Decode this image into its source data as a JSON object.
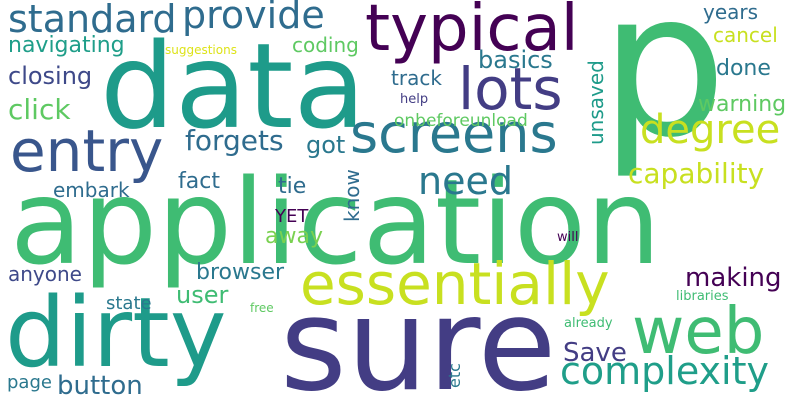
{
  "words": [
    {
      "text": "p",
      "color": "#3fbc73"
    },
    {
      "text": "application",
      "color": "#3fbc73"
    },
    {
      "text": "data",
      "color": "#1e9b8a"
    },
    {
      "text": "sure",
      "color": "#433d84"
    },
    {
      "text": "typical",
      "color": "#440154"
    },
    {
      "text": "dirty",
      "color": "#1e9b8a"
    },
    {
      "text": "essentially",
      "color": "#c8e020"
    },
    {
      "text": "entry",
      "color": "#39568c"
    },
    {
      "text": "screens",
      "color": "#2a788e"
    },
    {
      "text": "standard",
      "color": "#2f6c8e"
    },
    {
      "text": "provide",
      "color": "#2f6c8e"
    },
    {
      "text": "lots",
      "color": "#433d84"
    },
    {
      "text": "web",
      "color": "#3fbc73"
    },
    {
      "text": "degree",
      "color": "#c8e020"
    },
    {
      "text": "complexity",
      "color": "#1f9e89"
    },
    {
      "text": "need",
      "color": "#2a788e"
    },
    {
      "text": "capability",
      "color": "#c8e020"
    },
    {
      "text": "forgets",
      "color": "#2f6c8e"
    },
    {
      "text": "making",
      "color": "#440154"
    },
    {
      "text": "click",
      "color": "#5ec962"
    },
    {
      "text": "closing",
      "color": "#3e4989"
    },
    {
      "text": "navigating",
      "color": "#1f9e89"
    },
    {
      "text": "basics",
      "color": "#2a788e"
    },
    {
      "text": "years",
      "color": "#2f6c8e"
    },
    {
      "text": "cancel",
      "color": "#c8e020"
    },
    {
      "text": "done",
      "color": "#2a788e"
    },
    {
      "text": "warning",
      "color": "#5ec962"
    },
    {
      "text": "coding",
      "color": "#5ec962"
    },
    {
      "text": "track",
      "color": "#2f6c8e"
    },
    {
      "text": "button",
      "color": "#2f6c8e"
    },
    {
      "text": "Save",
      "color": "#433d84"
    },
    {
      "text": "user",
      "color": "#3fbc73"
    },
    {
      "text": "browser",
      "color": "#2a788e"
    },
    {
      "text": "got",
      "color": "#2a788e"
    },
    {
      "text": "fact",
      "color": "#2f6c8e"
    },
    {
      "text": "tie",
      "color": "#2f6c8e"
    },
    {
      "text": "away",
      "color": "#7ad151"
    },
    {
      "text": "embark",
      "color": "#2f6c8e"
    },
    {
      "text": "anyone",
      "color": "#3e4989"
    },
    {
      "text": "state",
      "color": "#2a788e"
    },
    {
      "text": "page",
      "color": "#2a788e"
    },
    {
      "text": "onbeforeunload",
      "color": "#5ec962"
    },
    {
      "text": "unsaved",
      "color": "#1e9b8a"
    },
    {
      "text": "know",
      "color": "#2f6c8e"
    },
    {
      "text": "YET",
      "color": "#440154"
    },
    {
      "text": "suggestions",
      "color": "#dde318"
    },
    {
      "text": "help",
      "color": "#433d84"
    },
    {
      "text": "will",
      "color": "#440154"
    },
    {
      "text": "libraries",
      "color": "#3fbc73"
    },
    {
      "text": "already",
      "color": "#3fbc73"
    },
    {
      "text": "free",
      "color": "#5ec962"
    },
    {
      "text": "etc",
      "color": "#2a788e"
    }
  ]
}
